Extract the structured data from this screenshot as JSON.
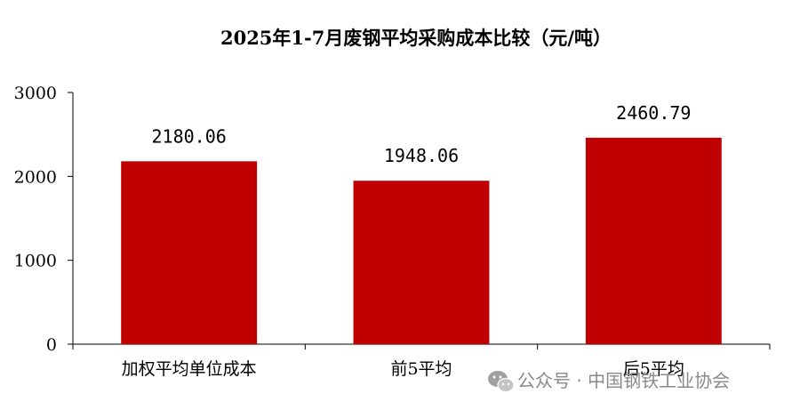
{
  "chart_data": {
    "type": "bar",
    "title": "2025年1-7月废钢平均采购成本比较（元/吨）",
    "categories": [
      "加权平均单位成本",
      "前5平均",
      "后5平均"
    ],
    "values": [
      2180.06,
      1948.06,
      2460.79
    ],
    "value_labels": [
      "2180.06",
      "1948.06",
      "2460.79"
    ],
    "y_ticks": [
      "0",
      "1000",
      "2000",
      "3000"
    ],
    "xlabel": "",
    "ylabel": "",
    "ylim": [
      0,
      3000
    ],
    "grid": false,
    "legend": "none",
    "bar_color": "#c00000"
  },
  "watermark": {
    "text": "公众号 · 中国钢铁工业协会",
    "icon": "wechat-icon"
  }
}
